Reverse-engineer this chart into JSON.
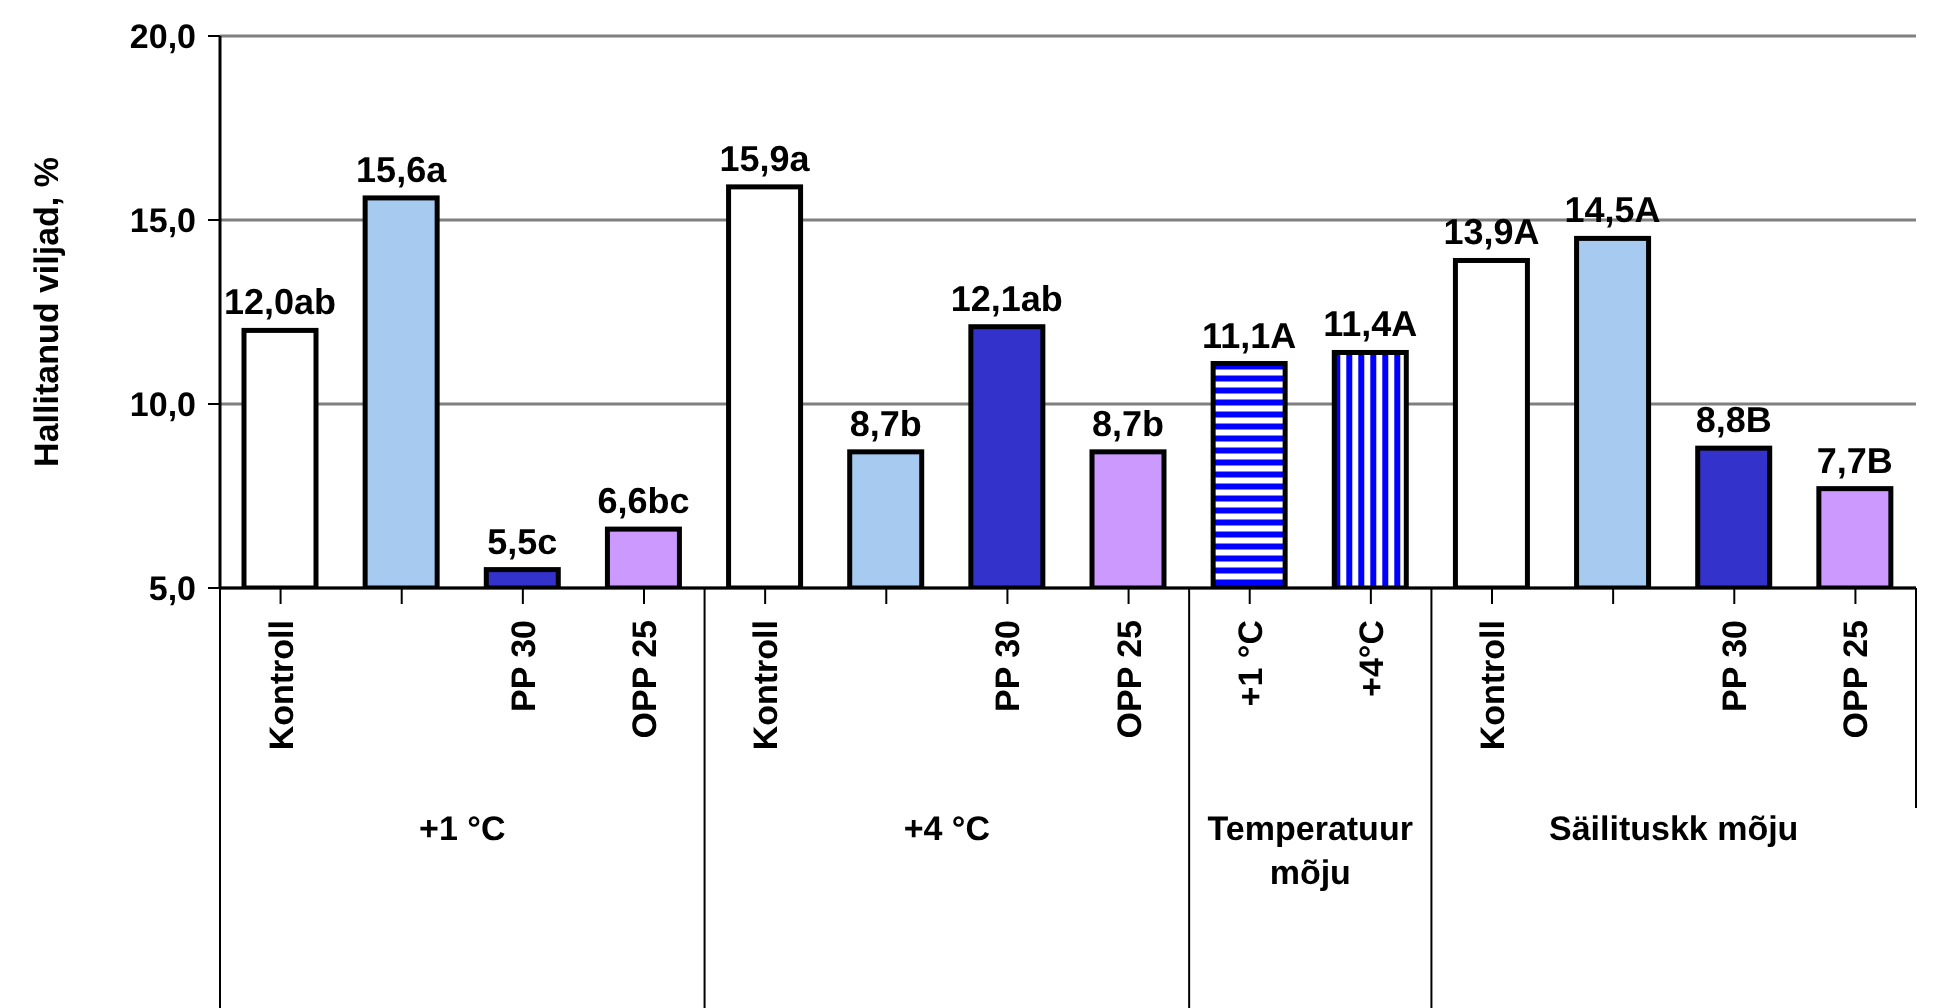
{
  "chart_data": {
    "type": "bar",
    "ylabel": "Hallitanud viljad, %",
    "categories": [
      "Kontroll",
      null,
      "PP 30",
      "OPP 25",
      "Kontroll",
      null,
      "PP 30",
      "OPP 25",
      "+1 °C",
      "+4°C",
      "Kontroll",
      null,
      "PP 30",
      "OPP 25"
    ],
    "values": [
      12.0,
      15.6,
      5.5,
      6.6,
      15.9,
      8.7,
      12.1,
      8.7,
      11.1,
      11.4,
      13.9,
      14.5,
      8.8,
      7.7
    ],
    "value_labels": [
      "12,0ab",
      "15,6a",
      "5,5c",
      "6,6bc",
      "15,9a",
      "8,7b",
      "12,1ab",
      "8,7b",
      "11,1A",
      "11,4A",
      "13,9A",
      "14,5A",
      "8,8B",
      "7,7B"
    ],
    "colors": [
      "#ffffff",
      "#a6caf0",
      "#3333cc",
      "#cc99ff",
      "#ffffff",
      "#a6caf0",
      "#3333cc",
      "#cc99ff",
      "#0000ff",
      "#0000ff",
      "#ffffff",
      "#a6caf0",
      "#3333cc",
      "#cc99ff"
    ],
    "ylim": [
      5,
      20
    ],
    "yticks": [
      {
        "value": 5,
        "label": "5,0"
      },
      {
        "value": 10,
        "label": "10,0"
      },
      {
        "value": 15,
        "label": "15,0"
      },
      {
        "value": 20,
        "label": "20,0"
      }
    ],
    "grid": "y",
    "annotations": [
      "+1 °C",
      "+4 °C",
      "Temperatuur mõju",
      "Säilituskk mõju"
    ]
  }
}
